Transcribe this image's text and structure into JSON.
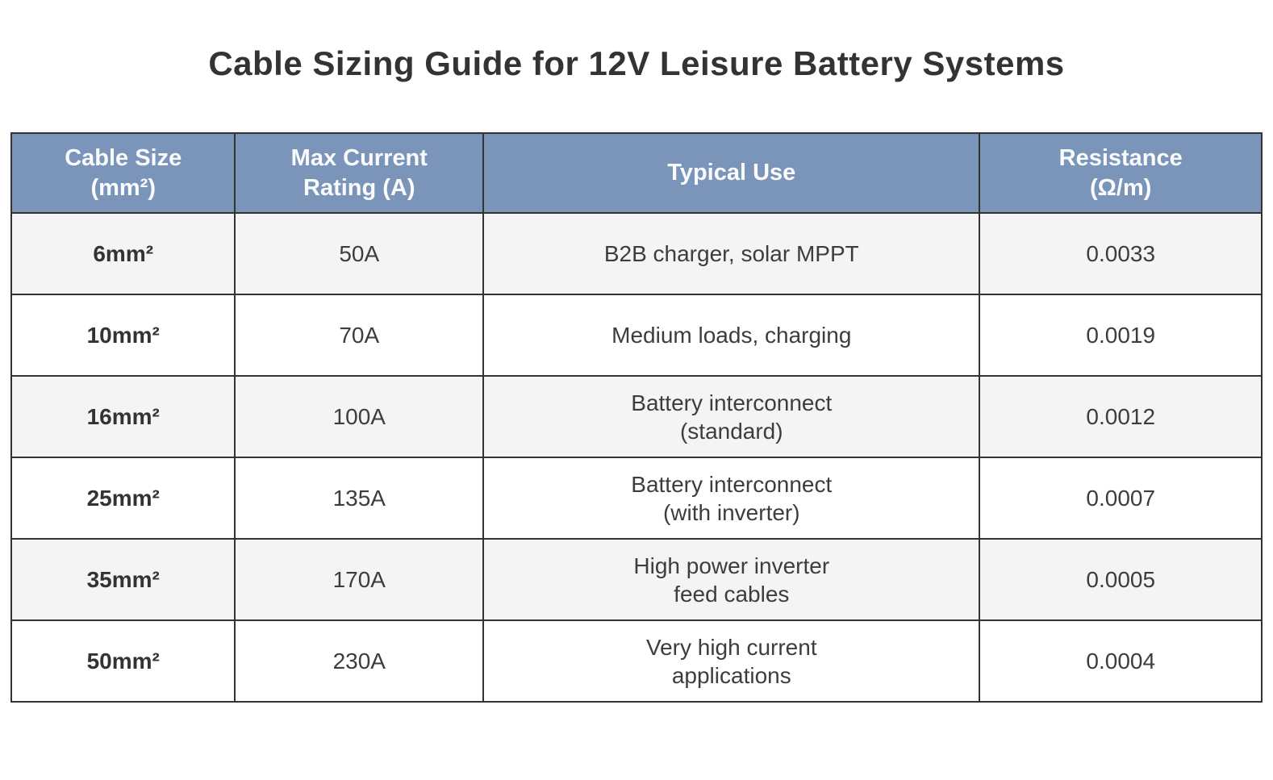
{
  "chart_data": {
    "type": "table",
    "title": "Cable Sizing Guide for 12V Leisure Battery Systems",
    "columns": [
      "Cable Size\n(mm²)",
      "Max Current\nRating (A)",
      "Typical Use",
      "Resistance\n(Ω/m)"
    ],
    "rows": [
      [
        "6mm²",
        "50A",
        "B2B charger, solar MPPT",
        "0.0033"
      ],
      [
        "10mm²",
        "70A",
        "Medium loads, charging",
        "0.0019"
      ],
      [
        "16mm²",
        "100A",
        "Battery interconnect\n(standard)",
        "0.0012"
      ],
      [
        "25mm²",
        "135A",
        "Battery interconnect\n(with inverter)",
        "0.0007"
      ],
      [
        "35mm²",
        "170A",
        "High power inverter\nfeed cables",
        "0.0005"
      ],
      [
        "50mm²",
        "230A",
        "Very high current\napplications",
        "0.0004"
      ]
    ]
  },
  "theme": {
    "page_bg": "#ffffff",
    "title_color": "#333333",
    "header_bg": "#7b95ba",
    "header_text": "#fafbfc",
    "border": "#333333",
    "row_bg": "#ffffff",
    "row_alt_bg": "#f4f4f4",
    "text": "#3d3d3d"
  }
}
